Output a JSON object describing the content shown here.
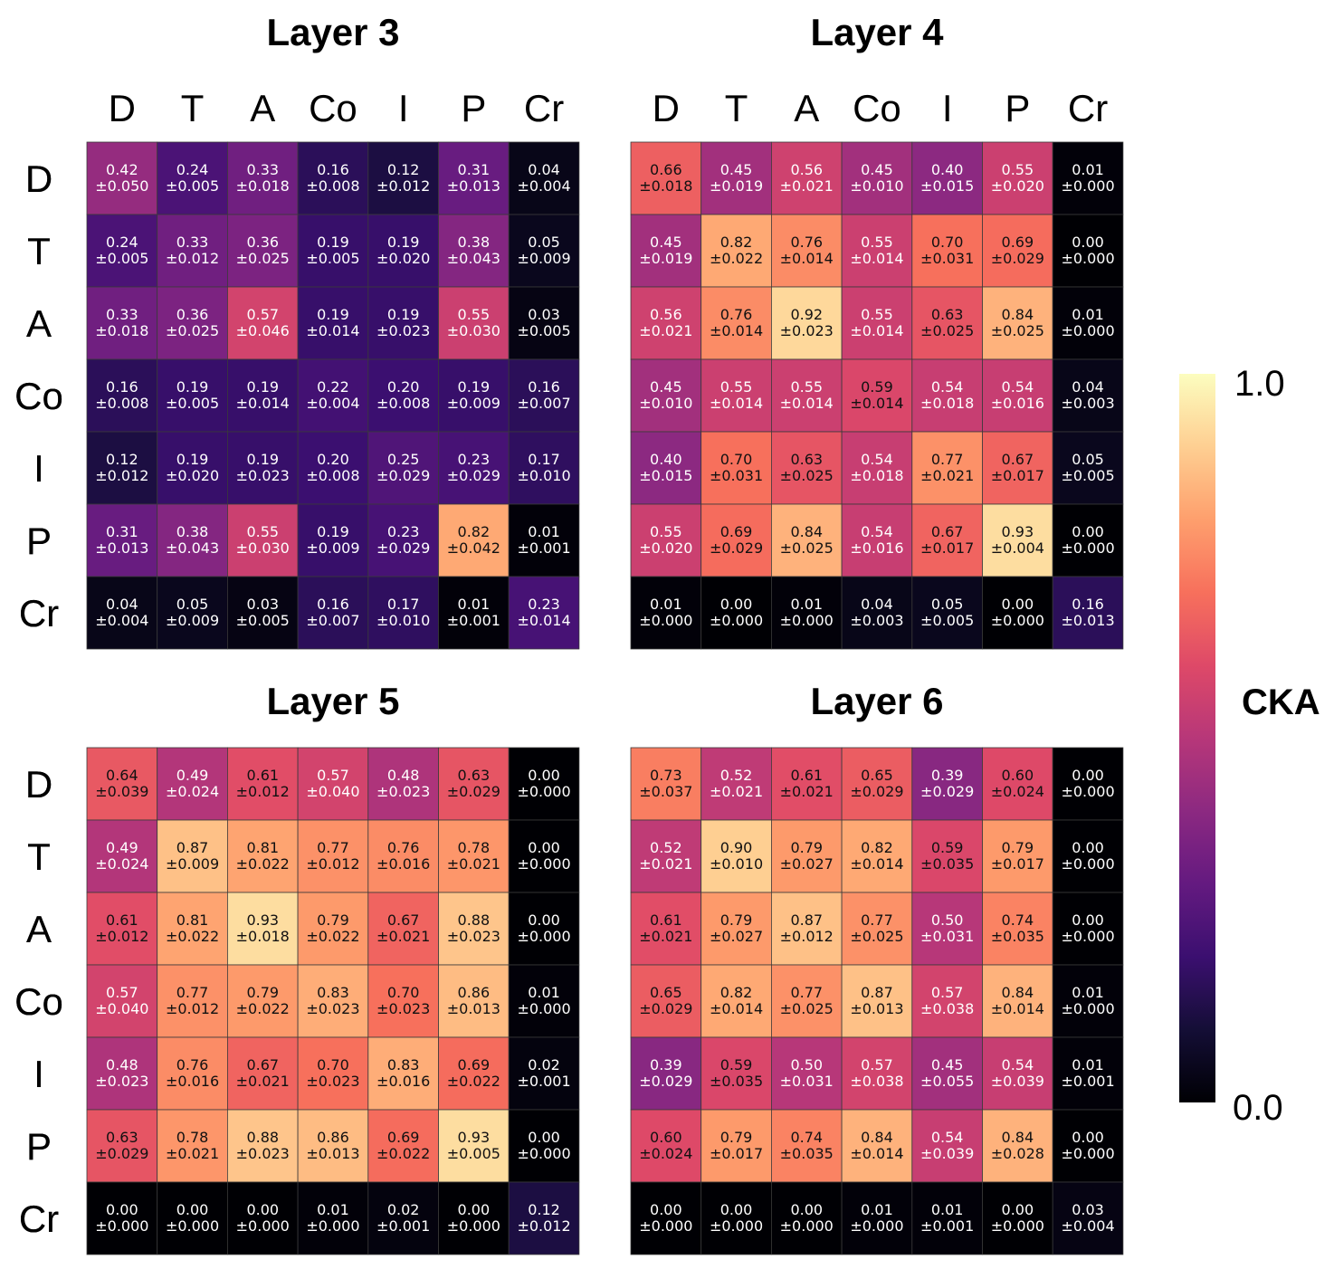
{
  "chart_data": {
    "type": "heatmap",
    "categories": [
      "D",
      "T",
      "A",
      "Co",
      "I",
      "P",
      "Cr"
    ],
    "colorbar": {
      "label": "CKA",
      "min": 0.0,
      "max": 1.0,
      "min_label": "0.0",
      "max_label": "1.0",
      "colormap": "magma"
    },
    "panels": [
      {
        "title": "Layer 3",
        "values": [
          [
            0.42,
            0.24,
            0.33,
            0.16,
            0.12,
            0.31,
            0.04
          ],
          [
            0.24,
            0.33,
            0.36,
            0.19,
            0.19,
            0.38,
            0.05
          ],
          [
            0.33,
            0.36,
            0.57,
            0.19,
            0.19,
            0.55,
            0.03
          ],
          [
            0.16,
            0.19,
            0.19,
            0.22,
            0.2,
            0.19,
            0.16
          ],
          [
            0.12,
            0.19,
            0.19,
            0.2,
            0.25,
            0.23,
            0.17
          ],
          [
            0.31,
            0.38,
            0.55,
            0.19,
            0.23,
            0.82,
            0.01
          ],
          [
            0.04,
            0.05,
            0.03,
            0.16,
            0.17,
            0.01,
            0.23
          ]
        ],
        "std": [
          [
            "±0.050",
            "±0.005",
            "±0.018",
            "±0.008",
            "±0.012",
            "±0.013",
            "±0.004"
          ],
          [
            "±0.005",
            "±0.012",
            "±0.025",
            "±0.005",
            "±0.020",
            "±0.043",
            "±0.009"
          ],
          [
            "±0.018",
            "±0.025",
            "±0.046",
            "±0.014",
            "±0.023",
            "±0.030",
            "±0.005"
          ],
          [
            "±0.008",
            "±0.005",
            "±0.014",
            "±0.004",
            "±0.008",
            "±0.009",
            "±0.007"
          ],
          [
            "±0.012",
            "±0.020",
            "±0.023",
            "±0.008",
            "±0.029",
            "±0.029",
            "±0.010"
          ],
          [
            "±0.013",
            "±0.043",
            "±0.030",
            "±0.009",
            "±0.029",
            "±0.042",
            "±0.001"
          ],
          [
            "±0.004",
            "±0.009",
            "±0.005",
            "±0.007",
            "±0.010",
            "±0.001",
            "±0.014"
          ]
        ]
      },
      {
        "title": "Layer 4",
        "values": [
          [
            0.66,
            0.45,
            0.56,
            0.45,
            0.4,
            0.55,
            0.01
          ],
          [
            0.45,
            0.82,
            0.76,
            0.55,
            0.7,
            0.69,
            0.0
          ],
          [
            0.56,
            0.76,
            0.92,
            0.55,
            0.63,
            0.84,
            0.01
          ],
          [
            0.45,
            0.55,
            0.55,
            0.59,
            0.54,
            0.54,
            0.04
          ],
          [
            0.4,
            0.7,
            0.63,
            0.54,
            0.77,
            0.67,
            0.05
          ],
          [
            0.55,
            0.69,
            0.84,
            0.54,
            0.67,
            0.93,
            0.0
          ],
          [
            0.01,
            0.0,
            0.01,
            0.04,
            0.05,
            0.0,
            0.16
          ]
        ],
        "std": [
          [
            "±0.018",
            "±0.019",
            "±0.021",
            "±0.010",
            "±0.015",
            "±0.020",
            "±0.000"
          ],
          [
            "±0.019",
            "±0.022",
            "±0.014",
            "±0.014",
            "±0.031",
            "±0.029",
            "±0.000"
          ],
          [
            "±0.021",
            "±0.014",
            "±0.023",
            "±0.014",
            "±0.025",
            "±0.025",
            "±0.000"
          ],
          [
            "±0.010",
            "±0.014",
            "±0.014",
            "±0.014",
            "±0.018",
            "±0.016",
            "±0.003"
          ],
          [
            "±0.015",
            "±0.031",
            "±0.025",
            "±0.018",
            "±0.021",
            "±0.017",
            "±0.005"
          ],
          [
            "±0.020",
            "±0.029",
            "±0.025",
            "±0.016",
            "±0.017",
            "±0.004",
            "±0.000"
          ],
          [
            "±0.000",
            "±0.000",
            "±0.000",
            "±0.003",
            "±0.005",
            "±0.000",
            "±0.013"
          ]
        ]
      },
      {
        "title": "Layer 5",
        "values": [
          [
            0.64,
            0.49,
            0.61,
            0.57,
            0.48,
            0.63,
            0.0
          ],
          [
            0.49,
            0.87,
            0.81,
            0.77,
            0.76,
            0.78,
            0.0
          ],
          [
            0.61,
            0.81,
            0.93,
            0.79,
            0.67,
            0.88,
            0.0
          ],
          [
            0.57,
            0.77,
            0.79,
            0.83,
            0.7,
            0.86,
            0.01
          ],
          [
            0.48,
            0.76,
            0.67,
            0.7,
            0.83,
            0.69,
            0.02
          ],
          [
            0.63,
            0.78,
            0.88,
            0.86,
            0.69,
            0.93,
            0.0
          ],
          [
            0.0,
            0.0,
            0.0,
            0.01,
            0.02,
            0.0,
            0.12
          ]
        ],
        "std": [
          [
            "±0.039",
            "±0.024",
            "±0.012",
            "±0.040",
            "±0.023",
            "±0.029",
            "±0.000"
          ],
          [
            "±0.024",
            "±0.009",
            "±0.022",
            "±0.012",
            "±0.016",
            "±0.021",
            "±0.000"
          ],
          [
            "±0.012",
            "±0.022",
            "±0.018",
            "±0.022",
            "±0.021",
            "±0.023",
            "±0.000"
          ],
          [
            "±0.040",
            "±0.012",
            "±0.022",
            "±0.023",
            "±0.023",
            "±0.013",
            "±0.000"
          ],
          [
            "±0.023",
            "±0.016",
            "±0.021",
            "±0.023",
            "±0.016",
            "±0.022",
            "±0.001"
          ],
          [
            "±0.029",
            "±0.021",
            "±0.023",
            "±0.013",
            "±0.022",
            "±0.005",
            "±0.000"
          ],
          [
            "±0.000",
            "±0.000",
            "±0.000",
            "±0.000",
            "±0.001",
            "±0.000",
            "±0.012"
          ]
        ]
      },
      {
        "title": "Layer 6",
        "values": [
          [
            0.73,
            0.52,
            0.61,
            0.65,
            0.39,
            0.6,
            0.0
          ],
          [
            0.52,
            0.9,
            0.79,
            0.82,
            0.59,
            0.79,
            0.0
          ],
          [
            0.61,
            0.79,
            0.87,
            0.77,
            0.5,
            0.74,
            0.0
          ],
          [
            0.65,
            0.82,
            0.77,
            0.87,
            0.57,
            0.84,
            0.01
          ],
          [
            0.39,
            0.59,
            0.5,
            0.57,
            0.45,
            0.54,
            0.01
          ],
          [
            0.6,
            0.79,
            0.74,
            0.84,
            0.54,
            0.84,
            0.0
          ],
          [
            0.0,
            0.0,
            0.0,
            0.01,
            0.01,
            0.0,
            0.03
          ]
        ],
        "std": [
          [
            "±0.037",
            "±0.021",
            "±0.021",
            "±0.029",
            "±0.029",
            "±0.024",
            "±0.000"
          ],
          [
            "±0.021",
            "±0.010",
            "±0.027",
            "±0.014",
            "±0.035",
            "±0.017",
            "±0.000"
          ],
          [
            "±0.021",
            "±0.027",
            "±0.012",
            "±0.025",
            "±0.031",
            "±0.035",
            "±0.000"
          ],
          [
            "±0.029",
            "±0.014",
            "±0.025",
            "±0.013",
            "±0.038",
            "±0.014",
            "±0.000"
          ],
          [
            "±0.029",
            "±0.035",
            "±0.031",
            "±0.038",
            "±0.055",
            "±0.039",
            "±0.001"
          ],
          [
            "±0.024",
            "±0.017",
            "±0.035",
            "±0.014",
            "±0.039",
            "±0.028",
            "±0.000"
          ],
          [
            "±0.000",
            "±0.000",
            "±0.000",
            "±0.000",
            "±0.001",
            "±0.000",
            "±0.004"
          ]
        ]
      }
    ]
  }
}
